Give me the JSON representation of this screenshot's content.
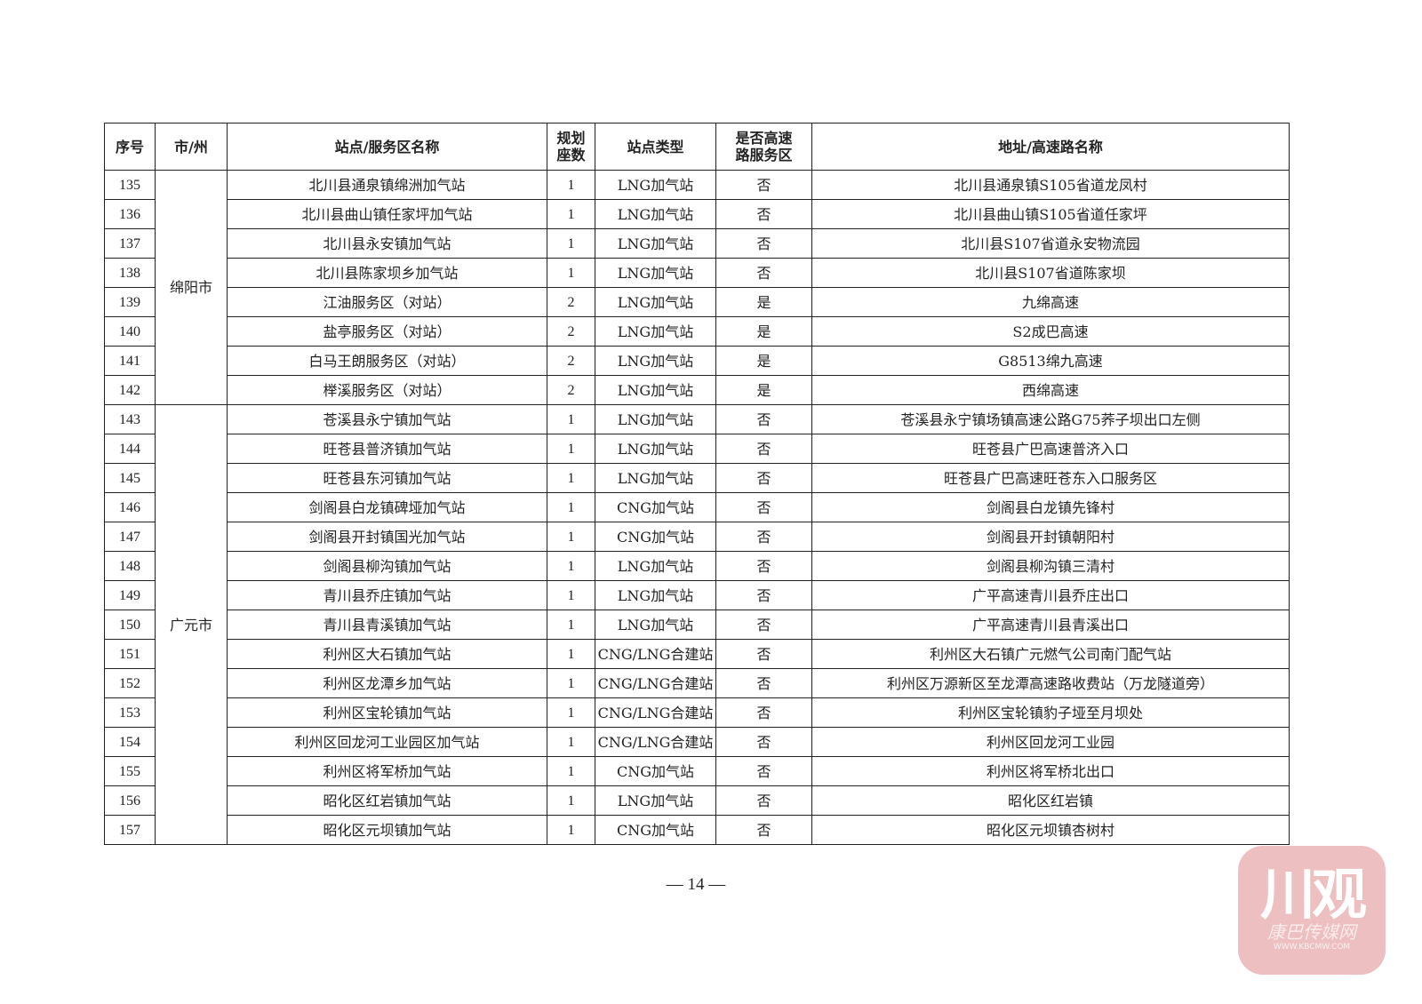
{
  "table": {
    "headers": [
      "序号",
      "市/州",
      "站点/服务区名称",
      "规划座数",
      "站点类型",
      "是否高速路服务区",
      "地址/高速路名称"
    ],
    "groups": [
      {
        "city": "绵阳市",
        "rows": [
          [
            "135",
            "北川县通泉镇绵洲加气站",
            "1",
            "LNG加气站",
            "否",
            "北川县通泉镇S105省道龙凤村"
          ],
          [
            "136",
            "北川县曲山镇任家坪加气站",
            "1",
            "LNG加气站",
            "否",
            "北川县曲山镇S105省道任家坪"
          ],
          [
            "137",
            "北川县永安镇加气站",
            "1",
            "LNG加气站",
            "否",
            "北川县S107省道永安物流园"
          ],
          [
            "138",
            "北川县陈家坝乡加气站",
            "1",
            "LNG加气站",
            "否",
            "北川县S107省道陈家坝"
          ],
          [
            "139",
            "江油服务区（对站）",
            "2",
            "LNG加气站",
            "是",
            "九绵高速"
          ],
          [
            "140",
            "盐亭服务区（对站）",
            "2",
            "LNG加气站",
            "是",
            "S2成巴高速"
          ],
          [
            "141",
            "白马王朗服务区（对站）",
            "2",
            "LNG加气站",
            "是",
            "G8513绵九高速"
          ],
          [
            "142",
            "榉溪服务区（对站）",
            "2",
            "LNG加气站",
            "是",
            "西绵高速"
          ]
        ]
      },
      {
        "city": "广元市",
        "rows": [
          [
            "143",
            "苍溪县永宁镇加气站",
            "1",
            "LNG加气站",
            "否",
            "苍溪县永宁镇场镇高速公路G75荞子坝出口左侧"
          ],
          [
            "144",
            "旺苍县普济镇加气站",
            "1",
            "LNG加气站",
            "否",
            "旺苍县广巴高速普济入口"
          ],
          [
            "145",
            "旺苍县东河镇加气站",
            "1",
            "LNG加气站",
            "否",
            "旺苍县广巴高速旺苍东入口服务区"
          ],
          [
            "146",
            "剑阁县白龙镇碑垭加气站",
            "1",
            "CNG加气站",
            "否",
            "剑阁县白龙镇先锋村"
          ],
          [
            "147",
            "剑阁县开封镇国光加气站",
            "1",
            "CNG加气站",
            "否",
            "剑阁县开封镇朝阳村"
          ],
          [
            "148",
            "剑阁县柳沟镇加气站",
            "1",
            "LNG加气站",
            "否",
            "剑阁县柳沟镇三清村"
          ],
          [
            "149",
            "青川县乔庄镇加气站",
            "1",
            "LNG加气站",
            "否",
            "广平高速青川县乔庄出口"
          ],
          [
            "150",
            "青川县青溪镇加气站",
            "1",
            "LNG加气站",
            "否",
            "广平高速青川县青溪出口"
          ],
          [
            "151",
            "利州区大石镇加气站",
            "1",
            "CNG/LNG合建站",
            "否",
            "利州区大石镇广元燃气公司南门配气站"
          ],
          [
            "152",
            "利州区龙潭乡加气站",
            "1",
            "CNG/LNG合建站",
            "否",
            "利州区万源新区至龙潭高速路收费站（万龙隧道旁）"
          ],
          [
            "153",
            "利州区宝轮镇加气站",
            "1",
            "CNG/LNG合建站",
            "否",
            "利州区宝轮镇豹子垭至月坝处"
          ],
          [
            "154",
            "利州区回龙河工业园区加气站",
            "1",
            "CNG/LNG合建站",
            "否",
            "利州区回龙河工业园"
          ],
          [
            "155",
            "利州区将军桥加气站",
            "1",
            "CNG加气站",
            "否",
            "利州区将军桥北出口"
          ],
          [
            "156",
            "昭化区红岩镇加气站",
            "1",
            "LNG加气站",
            "否",
            "昭化区红岩镇"
          ],
          [
            "157",
            "昭化区元坝镇加气站",
            "1",
            "CNG加气站",
            "否",
            "昭化区元坝镇杏树村"
          ]
        ]
      }
    ]
  },
  "page_number": "— 14 —",
  "watermark": {
    "main": "川观",
    "sub": "康巴传媒网",
    "url": "WWW.KBCMW.COM",
    "color": "#eab4b6"
  }
}
